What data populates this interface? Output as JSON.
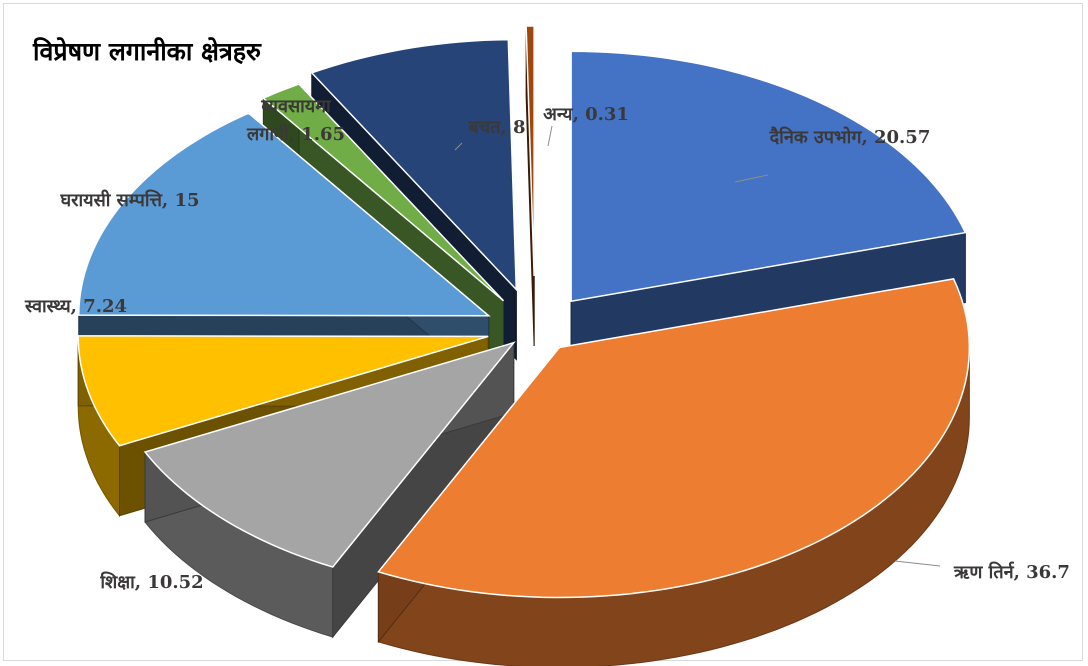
{
  "chart_data": {
    "type": "pie",
    "title": "विप्रेषण लगानीका क्षेत्रहरु",
    "slices": [
      {
        "label": "दैनिक उपभोग",
        "value": 20.57,
        "color": "#4472c4",
        "data_label": "दैनिक उपभोग, 20.57"
      },
      {
        "label": "ऋण तिर्न",
        "value": 36.7,
        "color": "#ed7d31",
        "data_label": "ऋण तिर्न, 36.7"
      },
      {
        "label": "शिक्षा",
        "value": 10.52,
        "color": "#a5a5a5",
        "data_label": "शिक्षा, 10.52"
      },
      {
        "label": "स्वास्थ्य",
        "value": 7.24,
        "color": "#ffc000",
        "data_label": "स्वास्थ्य, 7.24"
      },
      {
        "label": "घरायसी सम्पत्ति",
        "value": 15,
        "color": "#5b9bd5",
        "data_label": "घरायसी सम्पत्ति, 15"
      },
      {
        "label": "व्यवसायमा लगानी",
        "value": 1.65,
        "color": "#70ad47",
        "data_label": "व्यवसायमा लगानी, 1.65",
        "data_label_lines": [
          "व्यवसायमा",
          "लगानी, 1.65"
        ]
      },
      {
        "label": "बचत",
        "value": 8,
        "color": "#264478",
        "data_label": "बचत, 8"
      },
      {
        "label": "अन्य",
        "value": 0.31,
        "color": "#9e480e",
        "data_label": "अन्य, 0.31"
      }
    ],
    "style": "3d-exploded",
    "legend": "none"
  }
}
